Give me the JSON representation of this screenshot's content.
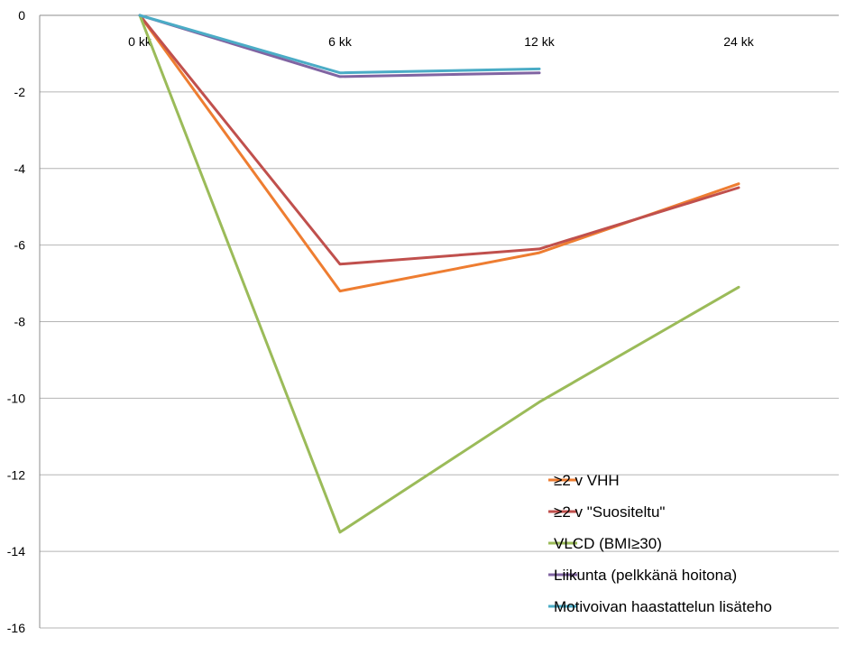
{
  "chart_data": {
    "type": "line",
    "title": "",
    "xlabel": "",
    "ylabel": "",
    "categories": [
      "0 kk",
      "6 kk",
      "12 kk",
      "24 kk"
    ],
    "ylim": [
      -16,
      0
    ],
    "yticks": [
      "0",
      "-2",
      "-4",
      "-6",
      "-8",
      "-10",
      "-12",
      "-14",
      "-16"
    ],
    "grid": true,
    "legend": "bottom-right",
    "series": [
      {
        "name": "≥2 v VHH",
        "color": "#ee7d31",
        "values": [
          0,
          -7.2,
          -6.2,
          -4.4
        ]
      },
      {
        "name": "≥2 v \"Suositeltu\"",
        "color": "#c0504d",
        "values": [
          0,
          -6.5,
          -6.1,
          -4.5
        ]
      },
      {
        "name": "VLCD (BMI≥30)",
        "color": "#9bbb59",
        "values": [
          0,
          -13.5,
          -10.1,
          -7.1
        ]
      },
      {
        "name": "Liikunta (pelkkänä hoitona)",
        "color": "#8064a2",
        "values": [
          0,
          -1.6,
          -1.5,
          null
        ]
      },
      {
        "name": "Motivoivan haastattelun lisäteho",
        "color": "#4bacc6",
        "values": [
          0,
          -1.5,
          -1.4,
          null
        ]
      }
    ]
  }
}
